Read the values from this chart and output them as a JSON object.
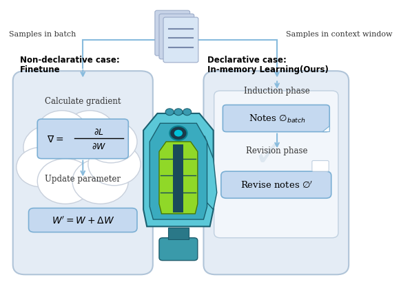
{
  "bg_color": "#ffffff",
  "panel_left_bg": "#e8eef5",
  "panel_right_bg": "#e8eef5",
  "inner_panel_bg": "#f0f4f8",
  "box_fill_blue": "#c5d9f0",
  "box_fill_light": "#dce8f6",
  "box_edge": "#88aacc",
  "arrow_color": "#88bbdd",
  "panel_edge": "#aabbd0",
  "doc_page_back": "#c5d4e8",
  "doc_page_front": "#d8e6f5",
  "doc_line": "#8899bb",
  "left_title1": "Non-declarative case:",
  "left_title2": "Finetune",
  "right_title1": "Declarative case:",
  "right_title2": "In-memory Learning(Ours)",
  "label_batch": "Samples in batch",
  "label_context": "Samples in context window",
  "label_calc": "Calculate gradient",
  "label_update": "Update parameter",
  "label_induction": "Induction phase",
  "label_revision": "Revision phase",
  "text_notes": "Notes $\\emptyset_{batch}$",
  "text_revise": "Revise notes $\\emptyset'$"
}
